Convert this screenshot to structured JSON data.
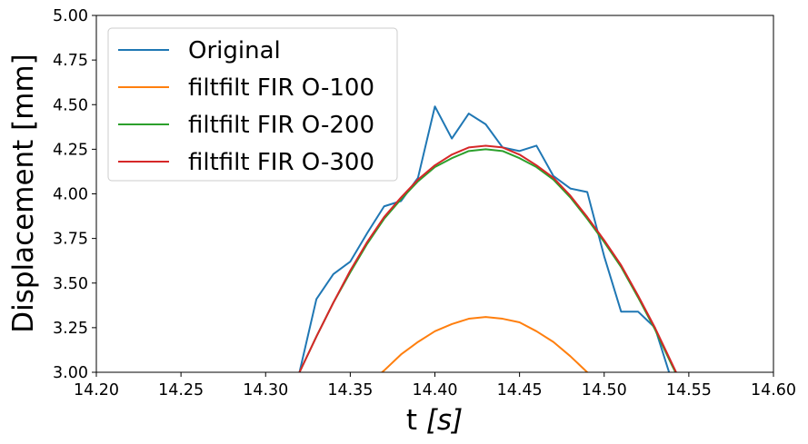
{
  "chart_data": {
    "type": "line",
    "title": "",
    "xlabel_main": "t ",
    "xlabel_var": "[s]",
    "ylabel": "Displacement [mm]",
    "xlim": [
      14.2,
      14.6
    ],
    "ylim": [
      3.0,
      5.0
    ],
    "xticks": [
      "14.20",
      "14.25",
      "14.30",
      "14.35",
      "14.40",
      "14.45",
      "14.50",
      "14.55",
      "14.60"
    ],
    "yticks": [
      "3.00",
      "3.25",
      "3.50",
      "3.75",
      "4.00",
      "4.25",
      "4.50",
      "4.75",
      "5.00"
    ],
    "grid": false,
    "legend_position": "upper-left",
    "series": [
      {
        "name": "Original",
        "color": "#1f77b4",
        "x": [
          14.31,
          14.32,
          14.33,
          14.34,
          14.35,
          14.36,
          14.37,
          14.38,
          14.39,
          14.4,
          14.41,
          14.42,
          14.43,
          14.44,
          14.45,
          14.46,
          14.47,
          14.48,
          14.49,
          14.5,
          14.51,
          14.52,
          14.53,
          14.54,
          14.55
        ],
        "y": [
          2.7,
          3.0,
          3.41,
          3.55,
          3.62,
          3.78,
          3.93,
          3.96,
          4.09,
          4.49,
          4.31,
          4.45,
          4.39,
          4.26,
          4.24,
          4.27,
          4.1,
          4.03,
          4.01,
          3.65,
          3.34,
          3.34,
          3.25,
          2.95,
          2.7
        ]
      },
      {
        "name": "filtfilt FIR O-100",
        "color": "#ff7f0e",
        "x": [
          14.36,
          14.37,
          14.38,
          14.39,
          14.4,
          14.41,
          14.42,
          14.43,
          14.44,
          14.45,
          14.46,
          14.47,
          14.48,
          14.49,
          14.5
        ],
        "y": [
          2.93,
          3.01,
          3.1,
          3.17,
          3.23,
          3.27,
          3.3,
          3.31,
          3.3,
          3.28,
          3.23,
          3.17,
          3.09,
          3.0,
          2.9
        ]
      },
      {
        "name": "filtfilt FIR O-200",
        "color": "#2ca02c",
        "x": [
          14.31,
          14.32,
          14.33,
          14.34,
          14.35,
          14.36,
          14.37,
          14.38,
          14.39,
          14.4,
          14.41,
          14.42,
          14.43,
          14.44,
          14.45,
          14.46,
          14.47,
          14.48,
          14.49,
          14.5,
          14.51,
          14.52,
          14.53,
          14.54,
          14.55
        ],
        "y": [
          2.8,
          3.0,
          3.2,
          3.39,
          3.56,
          3.72,
          3.86,
          3.97,
          4.07,
          4.15,
          4.2,
          4.24,
          4.25,
          4.24,
          4.2,
          4.15,
          4.08,
          3.98,
          3.86,
          3.73,
          3.59,
          3.42,
          3.24,
          3.04,
          2.85
        ]
      },
      {
        "name": "filtfilt FIR O-300",
        "color": "#d62728",
        "x": [
          14.31,
          14.32,
          14.33,
          14.34,
          14.35,
          14.36,
          14.37,
          14.38,
          14.39,
          14.4,
          14.41,
          14.42,
          14.43,
          14.44,
          14.45,
          14.46,
          14.47,
          14.48,
          14.49,
          14.5,
          14.51,
          14.52,
          14.53,
          14.54,
          14.55
        ],
        "y": [
          2.8,
          3.0,
          3.2,
          3.39,
          3.57,
          3.73,
          3.87,
          3.98,
          4.08,
          4.16,
          4.22,
          4.26,
          4.27,
          4.26,
          4.22,
          4.16,
          4.09,
          3.99,
          3.87,
          3.74,
          3.6,
          3.43,
          3.25,
          3.05,
          2.85
        ]
      }
    ]
  }
}
